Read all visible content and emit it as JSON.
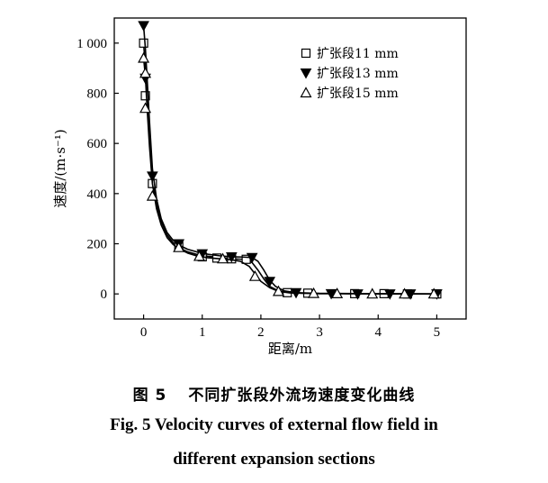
{
  "chart_data": {
    "type": "line",
    "xlabel": "距离/m",
    "ylabel": "速度/(m·s⁻¹)",
    "xlim": [
      -0.5,
      5.5
    ],
    "ylim": [
      -100,
      1100
    ],
    "xticks": [
      0,
      1,
      2,
      3,
      4,
      5
    ],
    "xtick_labels": [
      "0",
      "1",
      "2",
      "3",
      "4",
      "5"
    ],
    "yticks": [
      0,
      200,
      400,
      600,
      800,
      1000
    ],
    "ytick_labels": [
      "0",
      "200",
      "400",
      "600",
      "800",
      "1 000"
    ],
    "grid": false,
    "legend_position": "top-right",
    "series": [
      {
        "name": "扩张段11 mm",
        "marker": "open-square",
        "curve": [
          [
            0,
            1000
          ],
          [
            0.03,
            900
          ],
          [
            0.06,
            790
          ],
          [
            0.1,
            640
          ],
          [
            0.15,
            470
          ],
          [
            0.22,
            360
          ],
          [
            0.3,
            290
          ],
          [
            0.4,
            235
          ],
          [
            0.5,
            205
          ],
          [
            0.6,
            185
          ],
          [
            0.75,
            168
          ],
          [
            0.9,
            158
          ],
          [
            1.1,
            150
          ],
          [
            1.3,
            145
          ],
          [
            1.5,
            140
          ],
          [
            1.7,
            138
          ],
          [
            1.85,
            125
          ],
          [
            1.95,
            95
          ],
          [
            2.05,
            60
          ],
          [
            2.15,
            30
          ],
          [
            2.3,
            12
          ],
          [
            2.5,
            5
          ],
          [
            2.8,
            2
          ],
          [
            3.5,
            1
          ],
          [
            4.5,
            0
          ],
          [
            5,
            0
          ]
        ],
        "markers": [
          [
            0,
            1000
          ],
          [
            0.03,
            790
          ],
          [
            0.15,
            440
          ],
          [
            0.6,
            190
          ],
          [
            1.0,
            148
          ],
          [
            1.25,
            143
          ],
          [
            1.5,
            140
          ],
          [
            1.75,
            138
          ],
          [
            2.45,
            5
          ],
          [
            2.8,
            3
          ],
          [
            3.6,
            1
          ],
          [
            4.1,
            1
          ],
          [
            4.5,
            0
          ],
          [
            5,
            0
          ]
        ]
      },
      {
        "name": "扩张段13 mm",
        "marker": "filled-triangle-down",
        "curve": [
          [
            0,
            1070
          ],
          [
            0.03,
            980
          ],
          [
            0.06,
            860
          ],
          [
            0.1,
            690
          ],
          [
            0.15,
            500
          ],
          [
            0.22,
            380
          ],
          [
            0.3,
            300
          ],
          [
            0.4,
            245
          ],
          [
            0.5,
            215
          ],
          [
            0.6,
            195
          ],
          [
            0.75,
            178
          ],
          [
            0.9,
            168
          ],
          [
            1.1,
            158
          ],
          [
            1.3,
            152
          ],
          [
            1.5,
            148
          ],
          [
            1.7,
            147
          ],
          [
            1.85,
            145
          ],
          [
            1.95,
            130
          ],
          [
            2.05,
            95
          ],
          [
            2.15,
            55
          ],
          [
            2.25,
            30
          ],
          [
            2.4,
            12
          ],
          [
            2.6,
            5
          ],
          [
            3.0,
            2
          ],
          [
            4,
            1
          ],
          [
            5,
            0
          ]
        ],
        "markers": [
          [
            0,
            1070
          ],
          [
            0.03,
            860
          ],
          [
            0.15,
            470
          ],
          [
            0.6,
            200
          ],
          [
            1.0,
            160
          ],
          [
            1.5,
            148
          ],
          [
            1.85,
            145
          ],
          [
            2.15,
            50
          ],
          [
            2.6,
            5
          ],
          [
            3.2,
            1
          ],
          [
            3.65,
            0
          ],
          [
            4.2,
            0
          ],
          [
            4.55,
            0
          ],
          [
            5,
            0
          ]
        ]
      },
      {
        "name": "扩张段15 mm",
        "marker": "open-triangle-up",
        "curve": [
          [
            0,
            940
          ],
          [
            0.03,
            870
          ],
          [
            0.06,
            740
          ],
          [
            0.1,
            590
          ],
          [
            0.15,
            440
          ],
          [
            0.22,
            340
          ],
          [
            0.3,
            275
          ],
          [
            0.4,
            225
          ],
          [
            0.5,
            198
          ],
          [
            0.6,
            180
          ],
          [
            0.75,
            163
          ],
          [
            0.9,
            152
          ],
          [
            1.1,
            144
          ],
          [
            1.3,
            140
          ],
          [
            1.5,
            136
          ],
          [
            1.65,
            130
          ],
          [
            1.8,
            110
          ],
          [
            1.9,
            80
          ],
          [
            2.0,
            50
          ],
          [
            2.15,
            25
          ],
          [
            2.3,
            10
          ],
          [
            2.5,
            4
          ],
          [
            3,
            1
          ],
          [
            5,
            0
          ]
        ],
        "markers": [
          [
            0,
            940
          ],
          [
            0.03,
            880
          ],
          [
            0.03,
            740
          ],
          [
            0.15,
            390
          ],
          [
            0.6,
            185
          ],
          [
            0.95,
            150
          ],
          [
            1.35,
            140
          ],
          [
            1.9,
            70
          ],
          [
            2.3,
            10
          ],
          [
            2.9,
            2
          ],
          [
            3.3,
            1
          ],
          [
            3.9,
            0
          ],
          [
            4.45,
            0
          ],
          [
            4.95,
            0
          ]
        ]
      }
    ]
  },
  "caption": {
    "cn_number": "图 5",
    "cn_text": "不同扩张段外流场速度变化曲线",
    "en_line1": "Fig. 5    Velocity curves of external flow field in",
    "en_line2": "different expansion sections"
  }
}
